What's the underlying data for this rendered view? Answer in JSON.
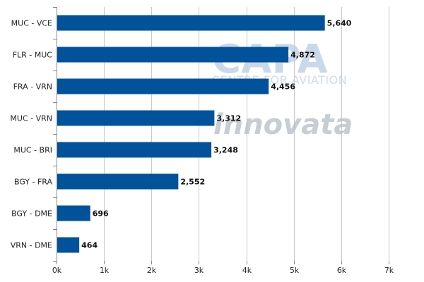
{
  "chart_data": {
    "type": "bar",
    "orientation": "horizontal",
    "categories": [
      "MUC - VCE",
      "FLR - MUC",
      "FRA - VRN",
      "MUC - VRN",
      "MUC - BRI",
      "BGY - FRA",
      "BGY - DME",
      "VRN - DME"
    ],
    "values": [
      5640,
      4872,
      4456,
      3312,
      3248,
      2552,
      696,
      464
    ],
    "value_labels": [
      "5,640",
      "4,872",
      "4,456",
      "3,312",
      "3,248",
      "2,552",
      "696",
      "464"
    ],
    "xlim": [
      0,
      7000
    ],
    "x_ticks": [
      0,
      1000,
      2000,
      3000,
      4000,
      5000,
      6000,
      7000
    ],
    "x_tick_labels": [
      "0k",
      "1k",
      "2k",
      "3k",
      "4k",
      "5k",
      "6k",
      "7k"
    ],
    "grid": true,
    "bar_color": "#00529b",
    "title": "",
    "xlabel": "",
    "ylabel": ""
  },
  "watermark": {
    "capa": "CAPA",
    "centre": "CENTRE FOR AVIATION",
    "innovata": "innovata"
  }
}
